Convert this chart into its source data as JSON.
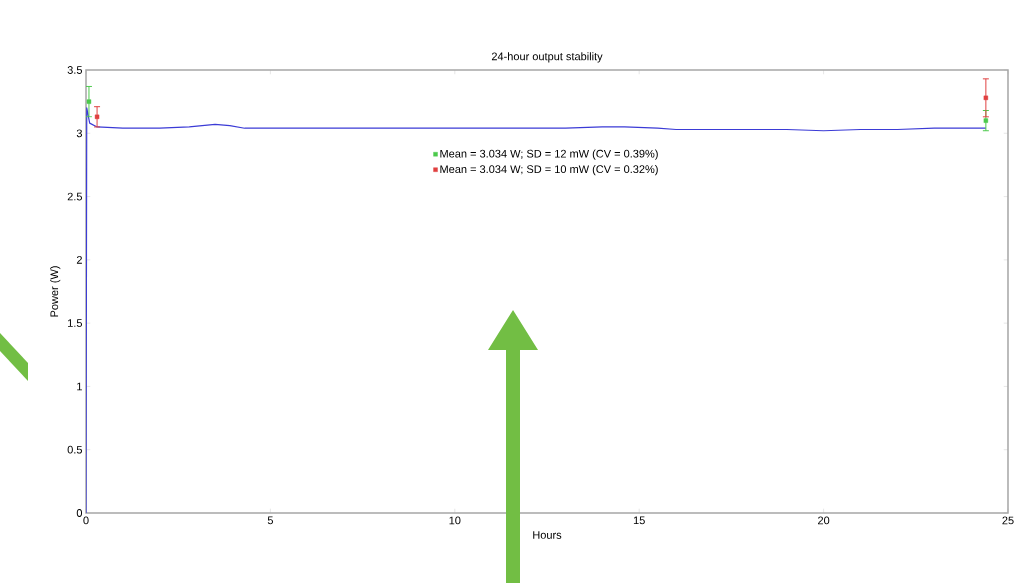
{
  "chart_data": {
    "type": "line",
    "title": "24-hour output stability",
    "xlabel": "Hours",
    "ylabel": "Power (W)",
    "xlim": [
      0,
      25
    ],
    "xticks": [
      0,
      5,
      10,
      15,
      20,
      25
    ],
    "ylim": [
      0,
      3.5
    ],
    "yticks": [
      0,
      0.5,
      1,
      1.5,
      2,
      2.5,
      3,
      3.5
    ],
    "grid": false,
    "legend": "top",
    "series": [
      {
        "color": "#3b3bd6",
        "x": [
          0,
          0.02,
          0.1,
          0.3,
          1,
          2,
          2.8,
          3.5,
          3.9,
          4.3,
          5,
          6,
          7,
          8,
          9,
          10,
          11,
          12,
          13,
          14,
          14.6,
          15.5,
          16,
          17,
          18,
          19,
          20,
          21,
          22,
          23,
          24,
          24.4
        ],
        "values": [
          0,
          3.2,
          3.08,
          3.05,
          3.04,
          3.04,
          3.05,
          3.07,
          3.06,
          3.04,
          3.04,
          3.04,
          3.04,
          3.04,
          3.04,
          3.04,
          3.04,
          3.04,
          3.04,
          3.05,
          3.05,
          3.04,
          3.03,
          3.03,
          3.03,
          3.03,
          3.02,
          3.03,
          3.03,
          3.04,
          3.04,
          3.04
        ]
      },
      {
        "name": "Mean = 3.034 W; SD = 12 mW (CV = 0.39%)",
        "color": "#4cc94c",
        "type": "scatter",
        "marker": "square",
        "x": [
          0.08,
          24.4
        ],
        "values": [
          3.25,
          3.1
        ],
        "errors": [
          0.12,
          0.08
        ]
      },
      {
        "name": "Mean = 3.034 W; SD = 10 mW (CV = 0.32%)",
        "color": "#e04040",
        "type": "scatter",
        "marker": "square",
        "x": [
          0.3,
          24.4
        ],
        "values": [
          3.13,
          3.28
        ],
        "errors": [
          0.08,
          0.15
        ]
      }
    ]
  }
}
